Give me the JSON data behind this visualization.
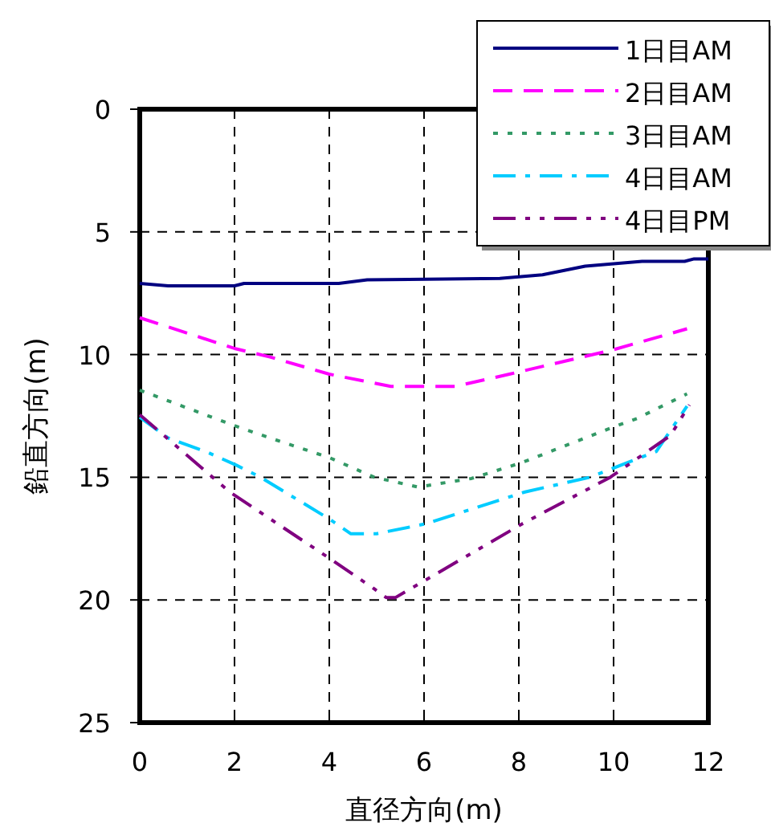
{
  "chart_data": {
    "type": "line",
    "xlabel": "直径方向(m)",
    "ylabel": "鉛直方向(m)",
    "xlim": [
      0,
      12
    ],
    "xticks": [
      0,
      2,
      4,
      6,
      8,
      10,
      12
    ],
    "ylim": [
      25,
      0
    ],
    "yticks": [
      0,
      5,
      10,
      15,
      20,
      25
    ],
    "grid": true,
    "legend": "top right",
    "marker": "none",
    "series": [
      {
        "name": "1日目AM",
        "color": "#000080",
        "line_style": "solid",
        "x": [
          0,
          0.6,
          2,
          2.2,
          4.2,
          4.8,
          7.6,
          8.5,
          9.4,
          10,
          10.6,
          11.5,
          11.7,
          12
        ],
        "values": [
          7.1,
          7.2,
          7.2,
          7.1,
          7.1,
          6.95,
          6.9,
          6.75,
          6.4,
          6.3,
          6.2,
          6.2,
          6.1,
          6.1
        ]
      },
      {
        "name": "2日目AM",
        "color": "#ff00ff",
        "line_style": "dashed",
        "x": [
          0,
          2,
          2.75,
          4,
          5.3,
          6.65,
          7.8,
          10,
          11.55
        ],
        "values": [
          8.5,
          9.75,
          10.1,
          10.8,
          11.3,
          11.3,
          10.8,
          9.8,
          8.95
        ]
      },
      {
        "name": "3日目AM",
        "color": "#339966",
        "line_style": "dotted",
        "x": [
          0,
          2,
          2.75,
          4,
          4.95,
          5.87,
          7,
          8.07,
          9.93,
          10.5,
          11.55
        ],
        "values": [
          11.45,
          12.9,
          13.4,
          14.2,
          15.0,
          15.4,
          15.05,
          14.4,
          13.0,
          12.6,
          11.6
        ]
      },
      {
        "name": "4日目AM",
        "color": "#00ccff",
        "line_style": "dashdot",
        "x": [
          0,
          0.6,
          1.45,
          2.03,
          2.55,
          4,
          4.45,
          5,
          6.03,
          8.13,
          9.5,
          10.9,
          11.55
        ],
        "values": [
          12.55,
          13.4,
          14.0,
          14.5,
          15.0,
          16.7,
          17.3,
          17.3,
          16.9,
          15.6,
          15.0,
          13.95,
          12.1
        ]
      },
      {
        "name": "4日目PM",
        "color": "#800080",
        "line_style": "dashdotdot",
        "x": [
          0,
          1.9,
          4,
          4.95,
          5.2,
          5.4,
          8.07,
          9.93,
          11.2,
          11.6
        ],
        "values": [
          12.45,
          15.6,
          18.3,
          19.55,
          19.9,
          19.9,
          16.9,
          15.0,
          13.3,
          12.05
        ]
      }
    ]
  }
}
